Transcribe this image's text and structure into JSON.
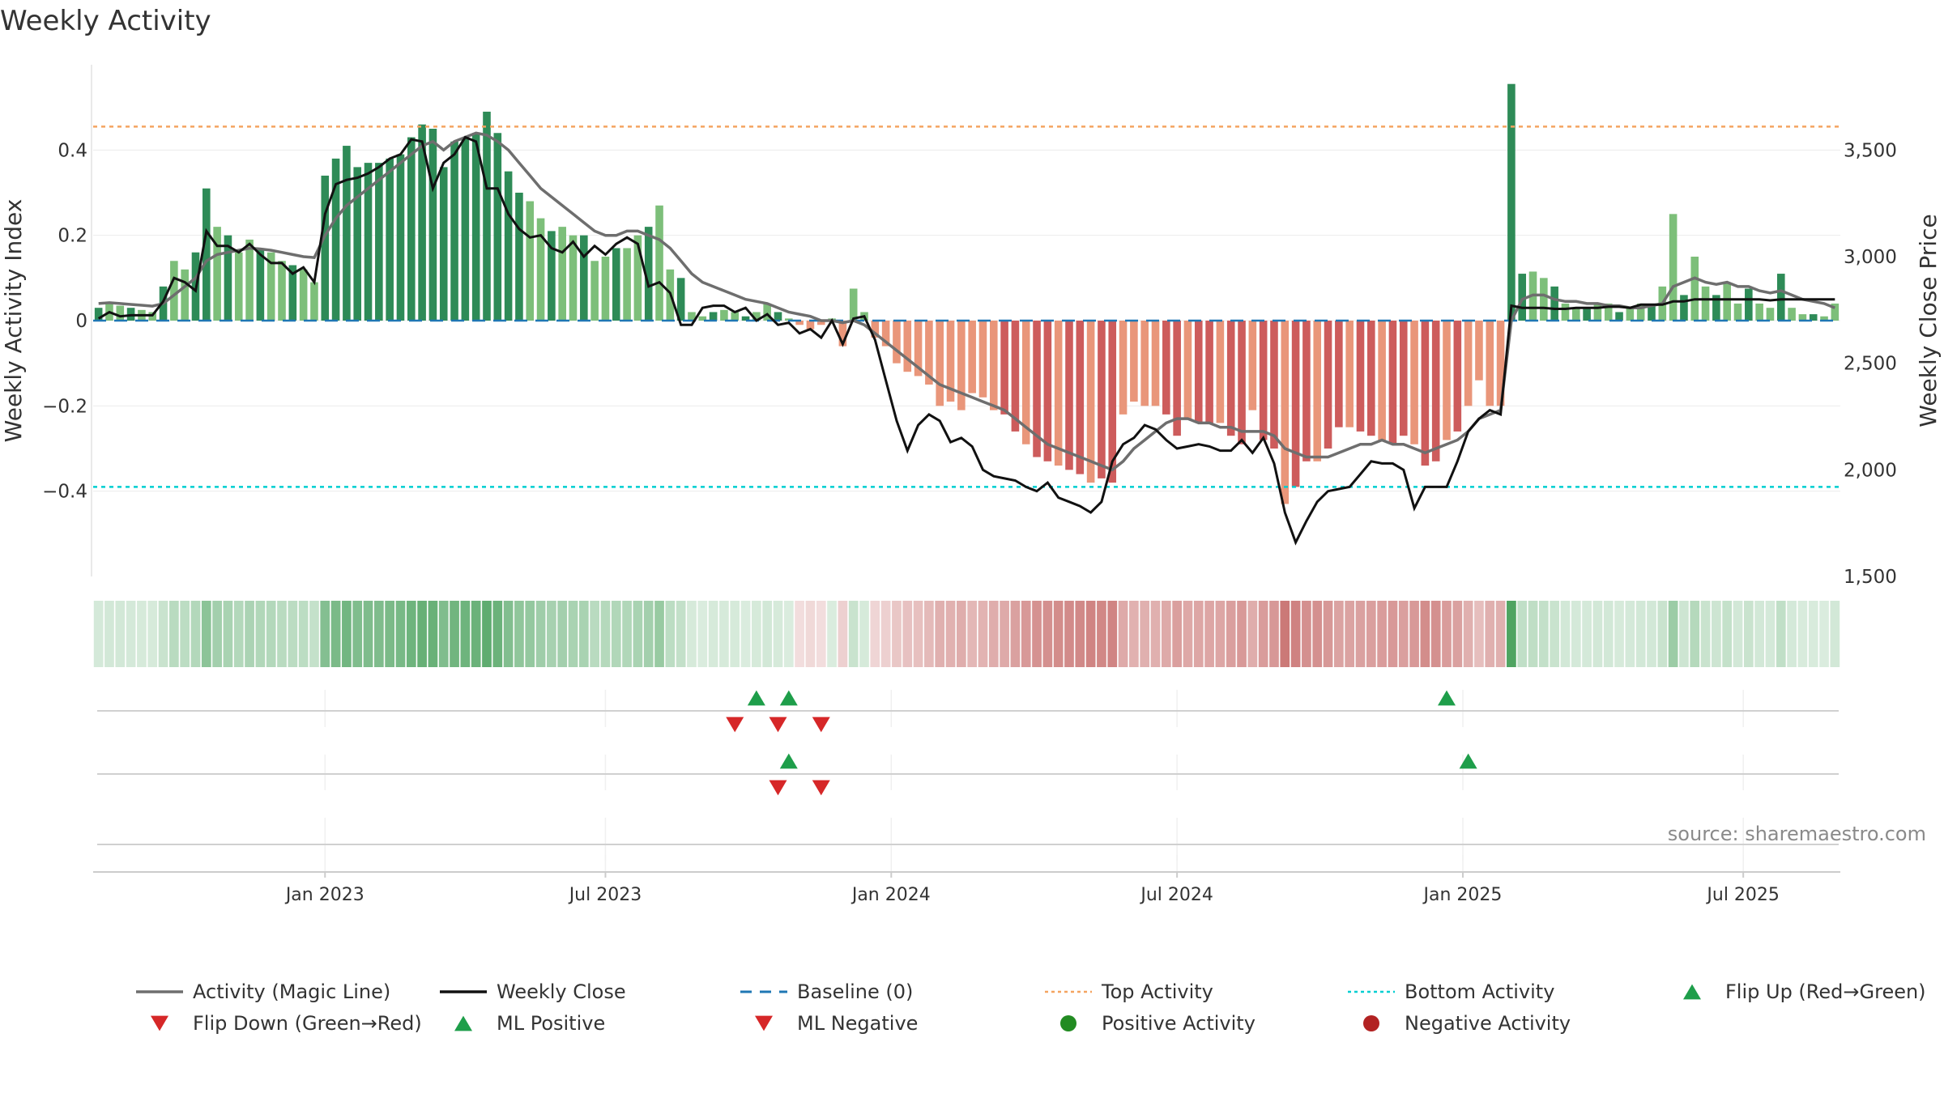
{
  "title": "Weekly Activity",
  "source": "source: sharemaestro.com",
  "colors": {
    "pos_dark": "#2e8b57",
    "pos_light": "#7dbf7a",
    "neg_dark": "#cd5c5c",
    "neg_light": "#e9967a",
    "magic_line": "#6e6e6e",
    "close": "#111111",
    "baseline": "#1f77b4",
    "top": "#f4a460",
    "bottom": "#00ced1",
    "flip_up": "#1e9e4a",
    "flip_down": "#d62728",
    "pos_dot": "#228b22",
    "neg_dot": "#b22222",
    "grid": "#ececec",
    "axis_text": "#333333"
  },
  "chart_data": {
    "type": "bar",
    "title": "Weekly Activity",
    "ylabel": "Weekly Activity Index",
    "y2label": "Weekly Close Price",
    "ylim": [
      -0.6,
      0.6
    ],
    "y2lim": [
      1500,
      3900
    ],
    "yticks": [
      0.4,
      0.2,
      0,
      -0.2,
      -0.4
    ],
    "ytick_labels": [
      "0.4",
      "0.2",
      "0",
      "−0.2",
      "−0.4"
    ],
    "y2ticks": [
      3500,
      3000,
      2500,
      2000,
      1500
    ],
    "y2tick_labels": [
      "3,500",
      "3,000",
      "2,500",
      "2,000",
      "1,500"
    ],
    "xticks": [
      {
        "label": "Jan 2023",
        "week": 21
      },
      {
        "label": "Jul 2023",
        "week": 47
      },
      {
        "label": "Jan 2024",
        "week": 73.5
      },
      {
        "label": "Jul 2024",
        "week": 100
      },
      {
        "label": "Jan 2025",
        "week": 126.5
      },
      {
        "label": "Jul 2025",
        "week": 152.5
      }
    ],
    "top_activity": 0.455,
    "bottom_activity": -0.39,
    "activity": [
      0.03,
      0.04,
      0.035,
      0.03,
      0.025,
      0.02,
      0.08,
      0.14,
      0.12,
      0.16,
      0.31,
      0.22,
      0.2,
      0.16,
      0.19,
      0.17,
      0.16,
      0.14,
      0.13,
      0.12,
      0.09,
      0.34,
      0.38,
      0.41,
      0.36,
      0.37,
      0.37,
      0.38,
      0.39,
      0.43,
      0.46,
      0.45,
      0.36,
      0.42,
      0.43,
      0.44,
      0.49,
      0.44,
      0.35,
      0.3,
      0.28,
      0.24,
      0.21,
      0.22,
      0.2,
      0.2,
      0.14,
      0.15,
      0.17,
      0.17,
      0.2,
      0.22,
      0.27,
      0.12,
      0.1,
      0.02,
      0.01,
      0.02,
      0.025,
      0.02,
      0.01,
      0.02,
      0.04,
      0.02,
      0.005,
      -0.01,
      -0.02,
      -0.01,
      0.005,
      -0.06,
      0.075,
      0.02,
      -0.04,
      -0.06,
      -0.1,
      -0.12,
      -0.13,
      -0.15,
      -0.2,
      -0.19,
      -0.21,
      -0.17,
      -0.18,
      -0.21,
      -0.22,
      -0.26,
      -0.29,
      -0.32,
      -0.33,
      -0.34,
      -0.35,
      -0.36,
      -0.38,
      -0.37,
      -0.38,
      -0.22,
      -0.19,
      -0.2,
      -0.2,
      -0.22,
      -0.27,
      -0.23,
      -0.24,
      -0.24,
      -0.24,
      -0.27,
      -0.29,
      -0.21,
      -0.28,
      -0.3,
      -0.43,
      -0.39,
      -0.33,
      -0.33,
      -0.3,
      -0.25,
      -0.25,
      -0.26,
      -0.27,
      -0.28,
      -0.29,
      -0.27,
      -0.29,
      -0.34,
      -0.33,
      -0.28,
      -0.26,
      -0.2,
      -0.14,
      -0.2,
      -0.2,
      0.555,
      0.11,
      0.115,
      0.1,
      0.08,
      0.04,
      0.03,
      0.03,
      0.04,
      0.04,
      0.02,
      0.03,
      0.04,
      0.035,
      0.08,
      0.25,
      0.06,
      0.15,
      0.08,
      0.06,
      0.09,
      0.04,
      0.075,
      0.04,
      0.03,
      0.11,
      0.03,
      0.015,
      0.015,
      0.01,
      0.04
    ],
    "magic_line": [
      0.04,
      0.042,
      0.04,
      0.038,
      0.036,
      0.034,
      0.04,
      0.06,
      0.08,
      0.1,
      0.14,
      0.155,
      0.16,
      0.165,
      0.17,
      0.168,
      0.165,
      0.16,
      0.155,
      0.15,
      0.148,
      0.2,
      0.24,
      0.27,
      0.29,
      0.31,
      0.33,
      0.35,
      0.37,
      0.39,
      0.41,
      0.42,
      0.4,
      0.42,
      0.43,
      0.44,
      0.435,
      0.42,
      0.4,
      0.37,
      0.34,
      0.31,
      0.29,
      0.27,
      0.25,
      0.23,
      0.21,
      0.2,
      0.2,
      0.21,
      0.21,
      0.2,
      0.19,
      0.17,
      0.14,
      0.11,
      0.09,
      0.08,
      0.07,
      0.06,
      0.05,
      0.045,
      0.04,
      0.03,
      0.02,
      0.015,
      0.01,
      0.0,
      0.0,
      -0.005,
      0.0,
      -0.01,
      -0.03,
      -0.05,
      -0.07,
      -0.09,
      -0.11,
      -0.13,
      -0.15,
      -0.16,
      -0.17,
      -0.18,
      -0.19,
      -0.2,
      -0.21,
      -0.23,
      -0.25,
      -0.27,
      -0.29,
      -0.3,
      -0.31,
      -0.32,
      -0.33,
      -0.34,
      -0.35,
      -0.33,
      -0.3,
      -0.28,
      -0.26,
      -0.24,
      -0.23,
      -0.23,
      -0.24,
      -0.24,
      -0.25,
      -0.25,
      -0.26,
      -0.26,
      -0.26,
      -0.27,
      -0.3,
      -0.31,
      -0.32,
      -0.32,
      -0.32,
      -0.31,
      -0.3,
      -0.29,
      -0.29,
      -0.28,
      -0.29,
      -0.29,
      -0.3,
      -0.31,
      -0.3,
      -0.29,
      -0.28,
      -0.26,
      -0.23,
      -0.22,
      -0.21,
      0.0,
      0.05,
      0.06,
      0.06,
      0.05,
      0.045,
      0.045,
      0.04,
      0.04,
      0.035,
      0.035,
      0.03,
      0.03,
      0.035,
      0.04,
      0.08,
      0.09,
      0.1,
      0.09,
      0.085,
      0.09,
      0.08,
      0.08,
      0.07,
      0.065,
      0.07,
      0.06,
      0.05,
      0.045,
      0.04,
      0.03
    ],
    "weekly_close": [
      2710,
      2740,
      2720,
      2725,
      2725,
      2725,
      2790,
      2900,
      2880,
      2840,
      3120,
      3050,
      3050,
      3020,
      3060,
      3010,
      2970,
      2970,
      2920,
      2950,
      2880,
      3200,
      3340,
      3360,
      3370,
      3390,
      3420,
      3460,
      3480,
      3550,
      3540,
      3320,
      3440,
      3480,
      3560,
      3540,
      3320,
      3320,
      3200,
      3130,
      3090,
      3100,
      3040,
      3020,
      3070,
      3000,
      3050,
      3010,
      3060,
      3090,
      3060,
      2860,
      2880,
      2830,
      2680,
      2680,
      2760,
      2770,
      2770,
      2740,
      2760,
      2700,
      2730,
      2680,
      2690,
      2640,
      2660,
      2620,
      2700,
      2590,
      2710,
      2720,
      2610,
      2420,
      2230,
      2090,
      2210,
      2260,
      2230,
      2130,
      2150,
      2110,
      2000,
      1970,
      1960,
      1950,
      1920,
      1900,
      1940,
      1870,
      1850,
      1830,
      1800,
      1850,
      2040,
      2120,
      2150,
      2210,
      2190,
      2140,
      2100,
      2110,
      2120,
      2110,
      2090,
      2090,
      2140,
      2080,
      2150,
      2030,
      1800,
      1660,
      1760,
      1850,
      1900,
      1910,
      1920,
      1980,
      2040,
      2030,
      2030,
      2000,
      1820,
      1920,
      1920,
      1920,
      2040,
      2180,
      2240,
      2280,
      2260,
      2770,
      2760,
      2760,
      2760,
      2755,
      2755,
      2760,
      2760,
      2760,
      2765,
      2765,
      2760,
      2775,
      2775,
      2775,
      2790,
      2790,
      2800,
      2800,
      2800,
      2800,
      2800,
      2800,
      2800,
      2795,
      2800,
      2800,
      2800,
      2800,
      2800,
      2800
    ],
    "flip_up": [
      61,
      64,
      125
    ],
    "flip_down": [
      59,
      63,
      67
    ],
    "ml_positive": [
      64,
      127
    ],
    "ml_negative": [
      63,
      67
    ],
    "legend": [
      "Activity (Magic Line)",
      "Weekly Close",
      "Baseline (0)",
      "Top Activity",
      "Bottom Activity",
      "Flip Up (Red→Green)",
      "Flip Down (Green→Red)",
      "ML Positive",
      "ML Negative",
      "Positive Activity",
      "Negative Activity"
    ],
    "legend_placement": "bottom"
  }
}
